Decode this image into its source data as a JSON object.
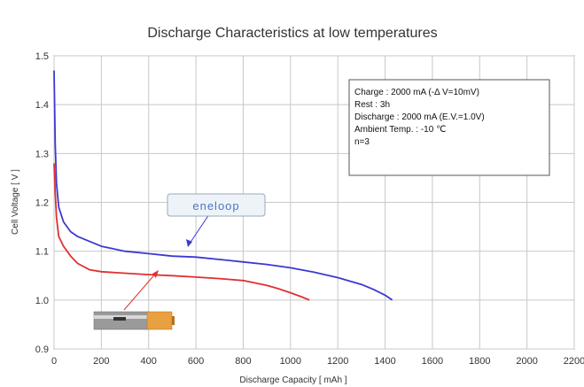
{
  "chart_data": {
    "type": "line",
    "title": "Discharge Characteristics at low temperatures",
    "xlabel": "Discharge Capacity [ mAh ]",
    "ylabel": "Cell Voltage [ V ]",
    "xlim": [
      0,
      2200
    ],
    "ylim": [
      0.9,
      1.5
    ],
    "xticks": [
      "0",
      "200",
      "400",
      "600",
      "800",
      "1000",
      "1200",
      "1400",
      "1600",
      "1800",
      "2000",
      "2200"
    ],
    "yticks": [
      "0.9",
      "1.0",
      "1.1",
      "1.2",
      "1.3",
      "1.4",
      "1.5"
    ],
    "grid": true,
    "series": [
      {
        "name": "eneloop",
        "color": "#3a3ad0",
        "x": [
          0,
          5,
          10,
          20,
          40,
          70,
          100,
          150,
          200,
          300,
          400,
          500,
          600,
          700,
          800,
          900,
          1000,
          1100,
          1200,
          1300,
          1350,
          1400,
          1430
        ],
        "y": [
          1.47,
          1.32,
          1.24,
          1.19,
          1.16,
          1.14,
          1.13,
          1.12,
          1.11,
          1.1,
          1.095,
          1.09,
          1.088,
          1.083,
          1.078,
          1.073,
          1.066,
          1.057,
          1.046,
          1.032,
          1.022,
          1.01,
          1.0
        ]
      },
      {
        "name": "",
        "color": "#e03030",
        "x": [
          0,
          5,
          10,
          20,
          40,
          70,
          100,
          150,
          200,
          300,
          400,
          500,
          600,
          700,
          800,
          900,
          950,
          1000,
          1050,
          1080
        ],
        "y": [
          1.28,
          1.22,
          1.17,
          1.13,
          1.11,
          1.09,
          1.075,
          1.062,
          1.058,
          1.055,
          1.052,
          1.05,
          1.047,
          1.044,
          1.04,
          1.03,
          1.023,
          1.015,
          1.006,
          1.0
        ]
      }
    ],
    "annotation": {
      "lines": [
        "Charge : 2000 mA (-Δ V=10mV)",
        "Rest : 3h",
        "Discharge : 2000 mA (E.V.=1.0V)",
        "Ambient Temp. : -10 ℃",
        "n=3"
      ]
    },
    "callouts": {
      "eneloop_label": "eneloop"
    }
  }
}
